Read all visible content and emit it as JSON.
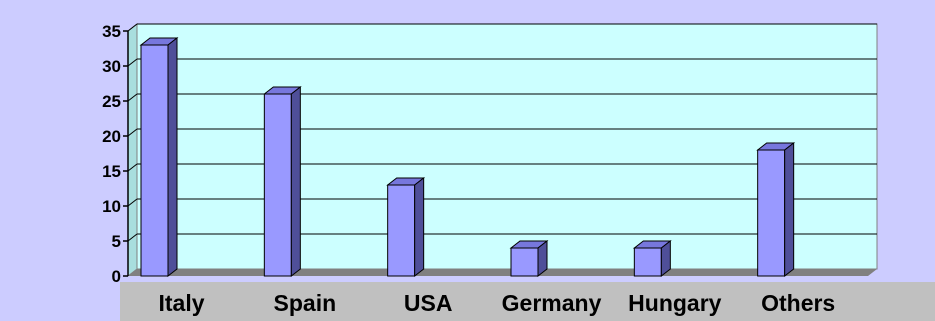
{
  "colors": {
    "background": "#ccccff",
    "plot_area": "#ccffff",
    "floor": "#808080",
    "label_band": "#c0c0c0",
    "bar_front": "#9999ff",
    "bar_top": "#7777dd",
    "bar_side": "#4f4f99"
  },
  "chart_data": {
    "type": "bar",
    "title": "",
    "xlabel": "",
    "ylabel": "",
    "categories": [
      "Italy",
      "Spain",
      "USA",
      "Germany",
      "Hungary",
      "Others"
    ],
    "values": [
      33,
      26,
      13,
      4,
      4,
      18
    ],
    "ylim": [
      0,
      35
    ],
    "yticks": [
      "0",
      "5",
      "10",
      "15",
      "20",
      "25",
      "30",
      "35"
    ],
    "grid": true,
    "legend": "none",
    "style": "3d-column"
  }
}
